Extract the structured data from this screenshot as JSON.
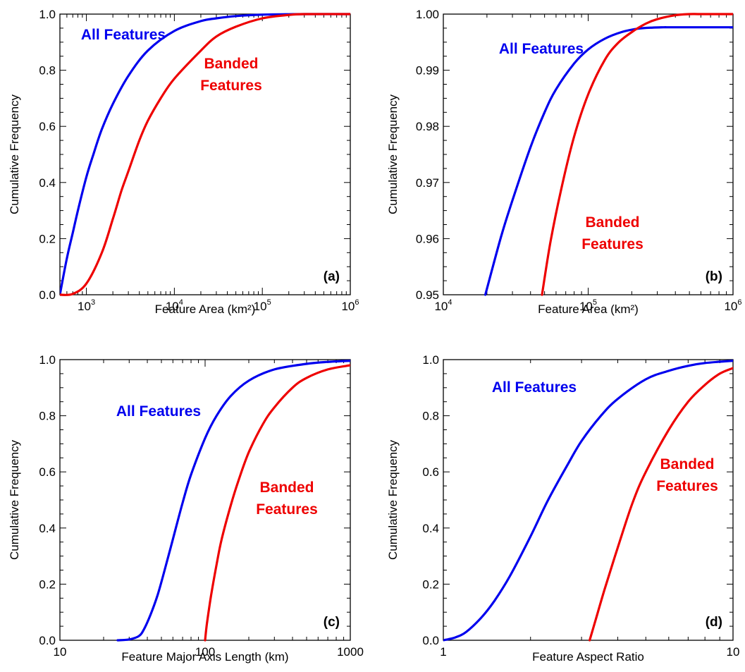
{
  "chart_data": [
    {
      "panel": "(a)",
      "type": "line",
      "xscale": "log",
      "xlabel": "Feature Area (km²)",
      "ylabel": "Cumulative Frequency",
      "xlim": [
        500,
        1000000
      ],
      "ylim": [
        0,
        1
      ],
      "x_ticks": [
        1000,
        10000,
        100000,
        1000000
      ],
      "x_tick_labels": [
        "10",
        "10",
        "10",
        "10"
      ],
      "x_tick_exponents": [
        "3",
        "4",
        "5",
        "6"
      ],
      "y_ticks": [
        0,
        0.2,
        0.4,
        0.6,
        0.8,
        1.0
      ],
      "y_tick_labels": [
        "0.0",
        "0.2",
        "0.4",
        "0.6",
        "0.8",
        "1.0"
      ],
      "grid": false,
      "series": [
        {
          "name": "All Features",
          "color": "#0000ee",
          "x": [
            500,
            600,
            700,
            800,
            1000,
            1200,
            1500,
            2000,
            3000,
            5000,
            10000,
            20000,
            30000,
            50000,
            100000,
            200000,
            300000,
            1000000
          ],
          "y": [
            0.0,
            0.13,
            0.22,
            0.3,
            0.42,
            0.5,
            0.59,
            0.68,
            0.78,
            0.87,
            0.94,
            0.975,
            0.985,
            0.993,
            0.998,
            0.9995,
            1.0,
            1.0
          ]
        },
        {
          "name": "Banded Features",
          "color": "#ee0000",
          "x": [
            500,
            700,
            1000,
            1500,
            2000,
            2500,
            3000,
            4000,
            5000,
            7000,
            10000,
            20000,
            30000,
            50000,
            100000,
            200000,
            300000,
            1000000
          ],
          "y": [
            0.0,
            0.003,
            0.04,
            0.15,
            0.27,
            0.37,
            0.44,
            0.55,
            0.62,
            0.7,
            0.77,
            0.87,
            0.92,
            0.955,
            0.985,
            0.997,
            1.0,
            1.0
          ]
        }
      ],
      "annotations": [
        {
          "text": "All Features",
          "color": "#0000ee"
        },
        {
          "text": "Banded",
          "color": "#ee0000"
        },
        {
          "text": "Features",
          "color": "#ee0000"
        }
      ]
    },
    {
      "panel": "(b)",
      "type": "line",
      "xscale": "log",
      "xlabel": "Feature Area (km²)",
      "ylabel": "Cumulative Frequency",
      "xlim": [
        10000,
        1000000
      ],
      "ylim": [
        0.95,
        1.0
      ],
      "x_ticks": [
        10000,
        100000,
        1000000
      ],
      "x_tick_labels": [
        "10",
        "10",
        "10"
      ],
      "x_tick_exponents": [
        "4",
        "5",
        "6"
      ],
      "y_ticks": [
        0.95,
        0.96,
        0.97,
        0.98,
        0.99,
        1.0
      ],
      "y_tick_labels": [
        "0.95",
        "0.96",
        "0.97",
        "0.98",
        "0.99",
        "1.00"
      ],
      "grid": false,
      "series": [
        {
          "name": "All Features",
          "color": "#0000ee",
          "x": [
            19500,
            25000,
            30000,
            40000,
            50000,
            60000,
            80000,
            100000,
            130000,
            170000,
            220000,
            280000,
            330000,
            400000,
            1000000
          ],
          "y": [
            0.95,
            0.9603,
            0.9668,
            0.9763,
            0.9825,
            0.9866,
            0.9912,
            0.9937,
            0.9956,
            0.9968,
            0.9974,
            0.9976,
            0.99765,
            0.99765,
            0.99765
          ]
        },
        {
          "name": "Banded Features",
          "color": "#ee0000",
          "x": [
            48000,
            55000,
            65000,
            80000,
            100000,
            130000,
            160000,
            200000,
            250000,
            300000,
            400000,
            500000,
            600000,
            1000000
          ],
          "y": [
            0.95,
            0.9595,
            0.9687,
            0.9782,
            0.9857,
            0.9918,
            0.9948,
            0.9968,
            0.9983,
            0.9991,
            0.9998,
            1.0,
            1.0,
            1.0
          ]
        }
      ],
      "annotations": [
        {
          "text": "All Features",
          "color": "#0000ee"
        },
        {
          "text": "Banded",
          "color": "#ee0000"
        },
        {
          "text": "Features",
          "color": "#ee0000"
        }
      ]
    },
    {
      "panel": "(c)",
      "type": "line",
      "xscale": "log",
      "xlabel": "Feature Major Axis Length (km)",
      "ylabel": "Cumulative Frequency",
      "xlim": [
        10,
        1000
      ],
      "ylim": [
        0,
        1
      ],
      "x_ticks": [
        10,
        100,
        1000
      ],
      "x_tick_labels": [
        "10",
        "100",
        "1000"
      ],
      "y_ticks": [
        0,
        0.2,
        0.4,
        0.6,
        0.8,
        1.0
      ],
      "y_tick_labels": [
        "0.0",
        "0.2",
        "0.4",
        "0.6",
        "0.8",
        "1.0"
      ],
      "grid": false,
      "series": [
        {
          "name": "All Features",
          "color": "#0000ee",
          "x": [
            25,
            30,
            35,
            38,
            42,
            47,
            52,
            60,
            70,
            80,
            100,
            120,
            150,
            200,
            300,
            500,
            700,
            1000
          ],
          "y": [
            0.0,
            0.003,
            0.015,
            0.04,
            0.09,
            0.16,
            0.24,
            0.36,
            0.49,
            0.59,
            0.72,
            0.8,
            0.87,
            0.925,
            0.965,
            0.985,
            0.992,
            0.996
          ]
        },
        {
          "name": "Banded Features",
          "color": "#ee0000",
          "x": [
            100,
            103,
            110,
            120,
            130,
            150,
            170,
            200,
            250,
            300,
            400,
            500,
            700,
            1000
          ],
          "y": [
            0.0,
            0.06,
            0.16,
            0.27,
            0.36,
            0.48,
            0.57,
            0.67,
            0.77,
            0.83,
            0.9,
            0.935,
            0.965,
            0.98
          ]
        }
      ],
      "annotations": [
        {
          "text": "All Features",
          "color": "#0000ee"
        },
        {
          "text": "Banded",
          "color": "#ee0000"
        },
        {
          "text": "Features",
          "color": "#ee0000"
        }
      ]
    },
    {
      "panel": "(d)",
      "type": "line",
      "xscale": "log",
      "xlabel": "Feature Aspect Ratio",
      "ylabel": "Cumulative Frequency",
      "xlim": [
        1,
        10
      ],
      "ylim": [
        0,
        1
      ],
      "x_ticks": [
        1,
        10
      ],
      "x_tick_labels": [
        "1",
        "10"
      ],
      "y_ticks": [
        0,
        0.2,
        0.4,
        0.6,
        0.8,
        1.0
      ],
      "y_tick_labels": [
        "0.0",
        "0.2",
        "0.4",
        "0.6",
        "0.8",
        "1.0"
      ],
      "grid": false,
      "series": [
        {
          "name": "All Features",
          "color": "#0000ee",
          "x": [
            1.0,
            1.1,
            1.2,
            1.35,
            1.5,
            1.7,
            2.0,
            2.3,
            2.7,
            3.0,
            3.5,
            4.0,
            5.0,
            6.0,
            7.0,
            8.0,
            10.0
          ],
          "y": [
            0.0,
            0.01,
            0.03,
            0.08,
            0.14,
            0.23,
            0.37,
            0.5,
            0.63,
            0.71,
            0.8,
            0.86,
            0.93,
            0.96,
            0.978,
            0.988,
            0.996
          ]
        },
        {
          "name": "Banded Features",
          "color": "#ee0000",
          "x": [
            3.2,
            3.35,
            3.6,
            4.0,
            4.5,
            5.0,
            6.0,
            7.0,
            8.0,
            9.0,
            10.0
          ],
          "y": [
            0.0,
            0.07,
            0.18,
            0.33,
            0.49,
            0.6,
            0.75,
            0.85,
            0.91,
            0.95,
            0.97
          ]
        }
      ],
      "annotations": [
        {
          "text": "All Features",
          "color": "#0000ee"
        },
        {
          "text": "Banded",
          "color": "#ee0000"
        },
        {
          "text": "Features",
          "color": "#ee0000"
        }
      ]
    }
  ]
}
